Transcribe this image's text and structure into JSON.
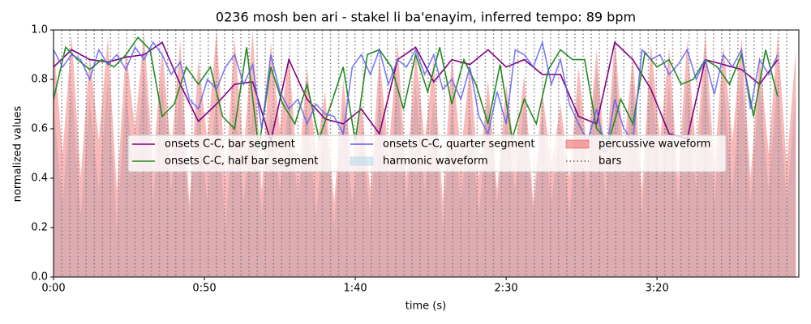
{
  "chart_data": {
    "type": "line",
    "title": "0236 mosh ben ari - stakel li ba'enayim, inferred tempo: 89 bpm",
    "xlabel": "time (s)",
    "ylabel": "normalized values",
    "xlim": [
      0,
      247
    ],
    "ylim": [
      0,
      1
    ],
    "xticks": [
      {
        "value": 0,
        "label": "0:00"
      },
      {
        "value": 50,
        "label": "0:50"
      },
      {
        "value": 100,
        "label": "1:40"
      },
      {
        "value": 150,
        "label": "2:30"
      },
      {
        "value": 200,
        "label": "3:20"
      }
    ],
    "yticks": [
      {
        "value": 0,
        "label": "0.0"
      },
      {
        "value": 0.2,
        "label": "0.2"
      },
      {
        "value": 0.4,
        "label": "0.4"
      },
      {
        "value": 0.6,
        "label": "0.6"
      },
      {
        "value": 0.8,
        "label": "0.8"
      },
      {
        "value": 1,
        "label": "1.0"
      }
    ],
    "legend": "center",
    "series": [
      {
        "name": "onsets C-C, bar segment",
        "style": "line",
        "color": "#800080",
        "x": [
          0,
          6,
          12,
          18,
          24,
          30,
          36,
          42,
          48,
          54,
          60,
          66,
          72,
          78,
          84,
          90,
          96,
          102,
          108,
          114,
          120,
          126,
          132,
          138,
          144,
          150,
          156,
          162,
          168,
          174,
          180,
          186,
          192,
          198,
          204,
          210,
          216,
          222,
          228,
          234,
          240
        ],
        "values": [
          0.85,
          0.92,
          0.88,
          0.87,
          0.89,
          0.9,
          0.95,
          0.78,
          0.63,
          0.7,
          0.78,
          0.79,
          0.55,
          0.88,
          0.72,
          0.64,
          0.62,
          0.68,
          0.58,
          0.88,
          0.93,
          0.79,
          0.88,
          0.86,
          0.92,
          0.85,
          0.88,
          0.82,
          0.82,
          0.65,
          0.62,
          0.95,
          0.88,
          0.76,
          0.58,
          0.56,
          0.88,
          0.86,
          0.84,
          0.78,
          0.88
        ]
      },
      {
        "name": "onsets C-C, half bar segment",
        "style": "line",
        "color": "#228b22",
        "x": [
          0,
          4,
          8,
          12,
          16,
          20,
          24,
          28,
          32,
          36,
          40,
          44,
          48,
          52,
          56,
          60,
          64,
          68,
          72,
          76,
          80,
          84,
          88,
          92,
          96,
          100,
          104,
          108,
          112,
          116,
          120,
          124,
          128,
          132,
          136,
          140,
          144,
          148,
          152,
          156,
          160,
          164,
          168,
          172,
          176,
          180,
          184,
          188,
          192,
          196,
          200,
          204,
          208,
          212,
          216,
          220,
          224,
          228,
          232,
          236,
          240
        ],
        "values": [
          0.72,
          0.93,
          0.88,
          0.84,
          0.88,
          0.85,
          0.9,
          0.97,
          0.92,
          0.65,
          0.7,
          0.85,
          0.78,
          0.85,
          0.65,
          0.6,
          0.93,
          0.52,
          0.85,
          0.7,
          0.62,
          0.78,
          0.56,
          0.7,
          0.85,
          0.55,
          0.9,
          0.92,
          0.85,
          0.68,
          0.9,
          0.75,
          0.93,
          0.7,
          0.88,
          0.78,
          0.62,
          0.86,
          0.56,
          0.72,
          0.62,
          0.84,
          0.92,
          0.88,
          0.88,
          0.6,
          0.55,
          0.72,
          0.62,
          0.91,
          0.85,
          0.88,
          0.78,
          0.8,
          0.88,
          0.85,
          0.78,
          0.9,
          0.65,
          0.92,
          0.73
        ]
      },
      {
        "name": "onsets C-C, quarter segment",
        "style": "line",
        "color": "#5b5bef",
        "x": [
          0,
          3,
          6,
          9,
          12,
          15,
          18,
          21,
          24,
          27,
          30,
          33,
          36,
          39,
          42,
          45,
          48,
          51,
          54,
          57,
          60,
          63,
          66,
          69,
          72,
          75,
          78,
          81,
          84,
          87,
          90,
          93,
          96,
          99,
          102,
          105,
          108,
          111,
          114,
          117,
          120,
          123,
          126,
          129,
          132,
          135,
          138,
          141,
          144,
          147,
          150,
          153,
          156,
          159,
          162,
          165,
          168,
          171,
          174,
          177,
          180,
          183,
          186,
          189,
          192,
          195,
          198,
          201,
          204,
          207,
          210,
          213,
          216,
          219,
          222,
          225,
          228,
          231,
          234,
          237,
          240
        ],
        "values": [
          0.92,
          0.85,
          0.9,
          0.88,
          0.8,
          0.92,
          0.86,
          0.9,
          0.84,
          0.93,
          0.88,
          0.95,
          0.9,
          0.82,
          0.87,
          0.72,
          0.68,
          0.8,
          0.76,
          0.85,
          0.9,
          0.78,
          0.86,
          0.6,
          0.9,
          0.75,
          0.68,
          0.72,
          0.62,
          0.7,
          0.66,
          0.65,
          0.58,
          0.85,
          0.9,
          0.82,
          0.92,
          0.78,
          0.88,
          0.85,
          0.92,
          0.82,
          0.9,
          0.76,
          0.8,
          0.72,
          0.85,
          0.65,
          0.58,
          0.75,
          0.62,
          0.92,
          0.9,
          0.85,
          0.95,
          0.78,
          0.88,
          0.7,
          0.62,
          0.55,
          0.68,
          0.5,
          0.72,
          0.6,
          0.55,
          0.92,
          0.88,
          0.9,
          0.82,
          0.86,
          0.92,
          0.8,
          0.88,
          0.74,
          0.9,
          0.85,
          0.92,
          0.68,
          0.88,
          0.82,
          0.9
        ]
      },
      {
        "name": "harmonic waveform",
        "style": "area",
        "color": "#add8e6",
        "x": [
          0,
          3,
          6,
          9,
          12,
          15,
          18,
          21,
          24,
          27,
          30,
          33,
          36,
          39,
          42,
          45,
          48,
          51,
          54,
          57,
          60,
          63,
          66,
          69,
          72,
          75,
          78,
          81,
          84,
          87,
          90,
          93,
          96,
          99,
          102,
          105,
          108,
          111,
          114,
          117,
          120,
          123,
          126,
          129,
          132,
          135,
          138,
          141,
          144,
          147,
          150,
          153,
          156,
          159,
          162,
          165,
          168,
          171,
          174,
          177,
          180,
          183,
          186,
          189,
          192,
          195,
          198,
          201,
          204,
          207,
          210,
          213,
          216,
          219,
          222,
          225,
          228,
          231,
          234,
          237,
          240,
          243,
          246
        ],
        "values": [
          0.7,
          0.3,
          0.78,
          0.25,
          0.72,
          0.35,
          0.8,
          0.2,
          0.75,
          0.4,
          0.85,
          0.3,
          0.8,
          0.35,
          0.78,
          0.25,
          0.7,
          0.3,
          0.75,
          0.2,
          0.72,
          0.3,
          0.7,
          0.25,
          0.68,
          0.35,
          0.72,
          0.3,
          0.7,
          0.25,
          0.65,
          0.2,
          0.7,
          0.3,
          0.6,
          0.25,
          0.75,
          0.35,
          0.8,
          0.3,
          0.78,
          0.35,
          0.72,
          0.2,
          0.7,
          0.3,
          0.68,
          0.25,
          0.72,
          0.3,
          0.65,
          0.35,
          0.7,
          0.25,
          0.66,
          0.3,
          0.62,
          0.25,
          0.75,
          0.35,
          0.85,
          0.3,
          0.88,
          0.35,
          0.8,
          0.25,
          0.82,
          0.4,
          0.78,
          0.3,
          0.8,
          0.35,
          0.85,
          0.3,
          0.8,
          0.35,
          0.82,
          0.3,
          0.78,
          0.35,
          0.8,
          0.3,
          0.75
        ]
      },
      {
        "name": "percussive waveform",
        "style": "area",
        "color": "#f05050",
        "x": [
          0,
          3,
          6,
          9,
          12,
          15,
          18,
          21,
          24,
          27,
          30,
          33,
          36,
          39,
          42,
          45,
          48,
          51,
          54,
          57,
          60,
          63,
          66,
          69,
          72,
          75,
          78,
          81,
          84,
          87,
          90,
          93,
          96,
          99,
          102,
          105,
          108,
          111,
          114,
          117,
          120,
          123,
          126,
          129,
          132,
          135,
          138,
          141,
          144,
          147,
          150,
          153,
          156,
          159,
          162,
          165,
          168,
          171,
          174,
          177,
          180,
          183,
          186,
          189,
          192,
          195,
          198,
          201,
          204,
          207,
          210,
          213,
          216,
          219,
          222,
          225,
          228,
          231,
          234,
          237,
          240,
          243,
          246
        ],
        "values": [
          0.95,
          0.5,
          0.98,
          0.4,
          0.9,
          0.55,
          0.97,
          0.35,
          0.92,
          0.6,
          0.99,
          0.45,
          0.93,
          0.5,
          0.96,
          0.3,
          0.88,
          0.55,
          1.0,
          0.4,
          0.97,
          0.5,
          1.0,
          0.35,
          0.95,
          0.6,
          0.9,
          0.4,
          0.85,
          0.5,
          0.75,
          0.3,
          0.8,
          0.45,
          0.7,
          0.35,
          0.9,
          0.5,
          0.95,
          0.4,
          0.92,
          0.55,
          0.88,
          0.3,
          0.9,
          0.5,
          0.85,
          0.4,
          0.8,
          0.35,
          0.78,
          0.5,
          0.82,
          0.3,
          0.75,
          0.45,
          0.7,
          0.4,
          0.85,
          0.5,
          0.92,
          0.45,
          0.97,
          0.5,
          0.9,
          0.35,
          0.95,
          0.55,
          0.93,
          0.4,
          0.96,
          0.5,
          0.99,
          0.45,
          0.94,
          0.55,
          0.97,
          0.4,
          0.9,
          0.5,
          0.98,
          0.45,
          0.92
        ]
      },
      {
        "name": "bars",
        "style": "vlines",
        "color": "#808080",
        "x": [
          0,
          2.7,
          5.4,
          8.1,
          10.8,
          13.5,
          16.2,
          18.9,
          21.6,
          24.3,
          27,
          29.7,
          32.4,
          35.1,
          37.8,
          40.5,
          43.2,
          45.9,
          48.6,
          51.3,
          54,
          56.7,
          59.4,
          62.1,
          64.8,
          67.5,
          70.2,
          72.9,
          75.6,
          78.3,
          81,
          83.7,
          86.4,
          89.1,
          91.8,
          94.5,
          97.2,
          99.9,
          102.6,
          105.3,
          108,
          110.7,
          113.4,
          116.1,
          118.8,
          121.5,
          124.2,
          126.9,
          129.6,
          132.3,
          135,
          137.7,
          140.4,
          143.1,
          145.8,
          148.5,
          151.2,
          153.9,
          156.6,
          159.3,
          162,
          164.7,
          167.4,
          170.1,
          172.8,
          175.5,
          178.2,
          180.9,
          183.6,
          186.3,
          189,
          191.7,
          194.4,
          197.1,
          199.8,
          202.5,
          205.2,
          207.9,
          210.6,
          213.3,
          216,
          218.7,
          221.4,
          224.1,
          226.8,
          229.5,
          232.2,
          234.9,
          237.6,
          240.3,
          243
        ]
      }
    ]
  }
}
